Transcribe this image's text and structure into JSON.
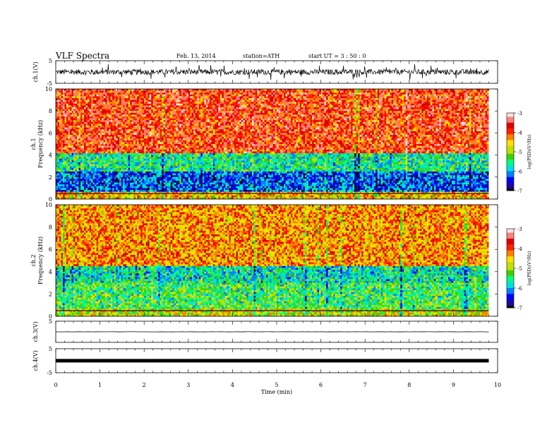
{
  "header": {
    "title": "VLF  Spectra",
    "date": "Feb. 13, 2014",
    "station": "station=ATH",
    "start_label": "start  UT  =   3  : 50 : 0"
  },
  "chart_data": [
    {
      "type": "line",
      "panel": "ch.1 waveform",
      "ylabel": "ch.1(V)",
      "ylim": [
        -5,
        5
      ],
      "ytick_labels": [
        "5",
        "-5"
      ],
      "xlim": [
        0,
        10
      ],
      "series": [
        {
          "values_note_free": true,
          "trace": "noisy",
          "y_center": 0,
          "y_amplitude": 1.2
        }
      ]
    },
    {
      "type": "heatmap",
      "panel": "ch.1 spectrogram",
      "ylabel": "ch.1\nFrequency  (kHz)",
      "ylim": [
        0,
        10
      ],
      "ytick_labels": [
        "0",
        "2",
        "4",
        "6",
        "8",
        "10"
      ],
      "xlim": [
        0,
        9.8
      ],
      "bands_khz": [
        {
          "from": 0,
          "to": 0.6,
          "level": -4.5
        },
        {
          "from": 0.6,
          "to": 2.5,
          "level": -6.2
        },
        {
          "from": 2.5,
          "to": 4.2,
          "level": -5.5
        },
        {
          "from": 4.2,
          "to": 10,
          "level": -3.8
        }
      ],
      "colorbar": {
        "label": "log(PSD)(V²/Hz)",
        "ticks": [
          "-3",
          "-4",
          "-5",
          "-6",
          "-7"
        ],
        "range": [
          -7,
          -3
        ]
      }
    },
    {
      "type": "heatmap",
      "panel": "ch.2 spectrogram",
      "ylabel": "ch.2\nFrequency  (kHz)",
      "ylim": [
        0,
        10
      ],
      "ytick_labels": [
        "0",
        "2",
        "4",
        "6",
        "8",
        "10"
      ],
      "xlim": [
        0,
        9.8
      ],
      "bands_khz": [
        {
          "from": 0,
          "to": 0.6,
          "level": -4.8
        },
        {
          "from": 0.6,
          "to": 3.0,
          "level": -5.3
        },
        {
          "from": 3.0,
          "to": 4.5,
          "level": -5.6
        },
        {
          "from": 4.5,
          "to": 10,
          "level": -4.3
        }
      ],
      "colorbar": {
        "label": "log(PSD)(V²/Hz)",
        "ticks": [
          "-3",
          "-4",
          "-5",
          "-6",
          "-7"
        ],
        "range": [
          -7,
          -3
        ]
      }
    },
    {
      "type": "line",
      "panel": "ch.3 waveform",
      "ylabel": "ch.3(V)",
      "ylim": [
        -5,
        5
      ],
      "ytick_labels": [
        "5"
      ],
      "xlim": [
        0,
        10
      ],
      "series": [
        {
          "trace": "flat",
          "y_center": 0,
          "y_amplitude": 0.05
        }
      ]
    },
    {
      "type": "line",
      "panel": "ch.4 waveform",
      "ylabel": "ch.4(V)",
      "ylim": [
        -5,
        5
      ],
      "ytick_labels": [
        "5",
        "-5"
      ],
      "xlim": [
        0,
        10
      ],
      "series": [
        {
          "trace": "thick",
          "y_center": 0,
          "y_amplitude": 0.3
        }
      ]
    }
  ],
  "xaxis": {
    "label": "Time  (min)",
    "ticks": [
      "0",
      "1",
      "2",
      "3",
      "4",
      "5",
      "6",
      "7",
      "8",
      "9",
      "10"
    ],
    "range": [
      0,
      10
    ]
  },
  "colors": {
    "scale": [
      "#000000",
      "#1a0aa0",
      "#0000ff",
      "#0080ff",
      "#00e0e0",
      "#00ff80",
      "#40d000",
      "#c0e000",
      "#ffe000",
      "#ff8000",
      "#ff2000",
      "#e00000",
      "#ff8080",
      "#ffe0e0"
    ]
  }
}
